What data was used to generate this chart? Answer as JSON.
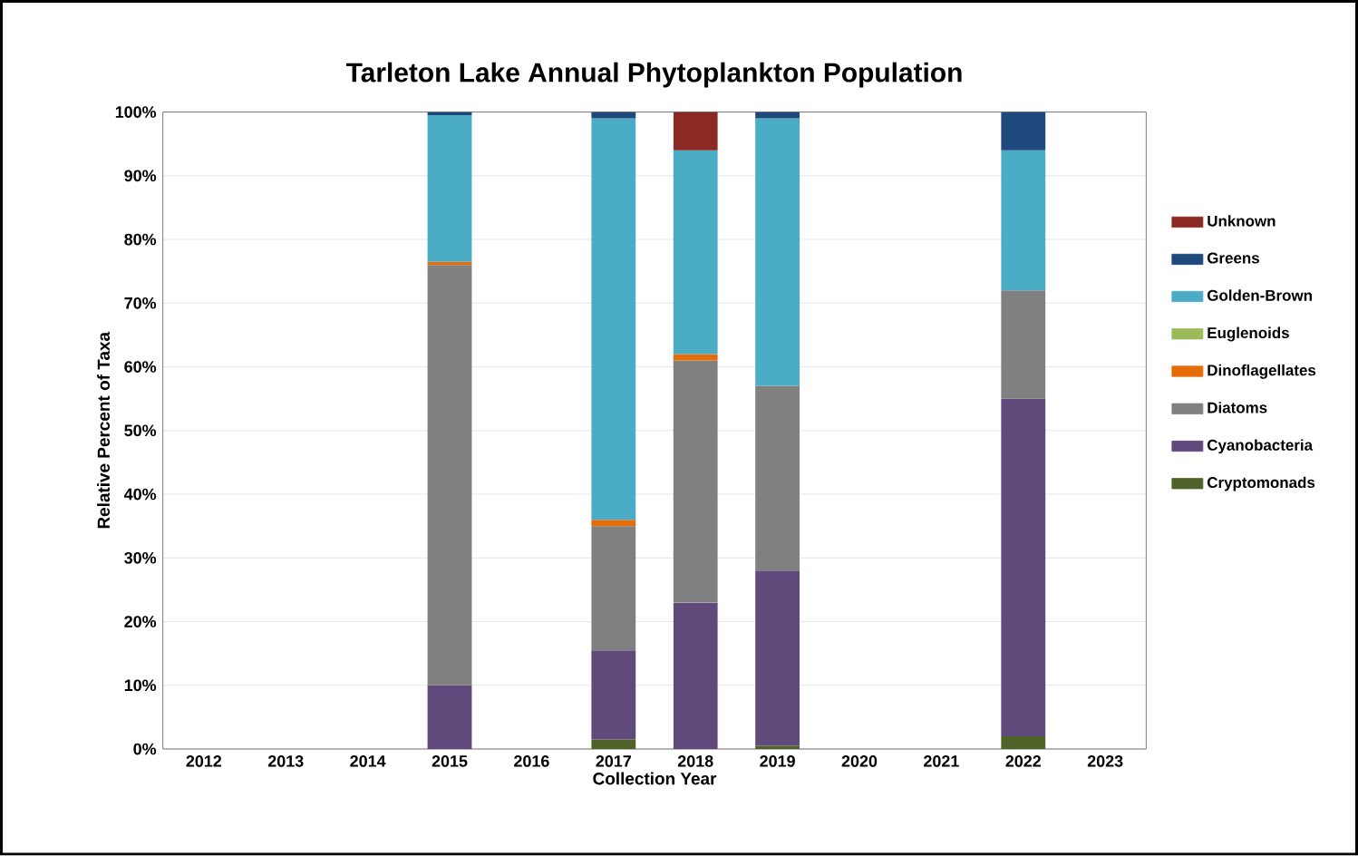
{
  "chart_data": {
    "type": "bar",
    "stacked": true,
    "title": "Tarleton Lake Annual Phytoplankton Population",
    "xlabel": "Collection Year",
    "ylabel": "Relative Percent of Taxa",
    "categories": [
      "2012",
      "2013",
      "2014",
      "2015",
      "2016",
      "2017",
      "2018",
      "2019",
      "2020",
      "2021",
      "2022",
      "2023"
    ],
    "series": [
      {
        "name": "Cryptomonads",
        "color": "#4f6228",
        "values": [
          null,
          null,
          null,
          0,
          null,
          1.5,
          0,
          0.5,
          null,
          null,
          2,
          null
        ]
      },
      {
        "name": "Cyanobacteria",
        "color": "#604a7b",
        "values": [
          null,
          null,
          null,
          10,
          null,
          14,
          23,
          27.5,
          null,
          null,
          53,
          null
        ]
      },
      {
        "name": "Diatoms",
        "color": "#808080",
        "values": [
          null,
          null,
          null,
          66,
          null,
          19.5,
          38,
          29,
          null,
          null,
          17,
          null
        ]
      },
      {
        "name": "Dinoflagellates",
        "color": "#e46c0a",
        "values": [
          null,
          null,
          null,
          0.5,
          null,
          1,
          1,
          0,
          null,
          null,
          0,
          null
        ]
      },
      {
        "name": "Euglenoids",
        "color": "#9bbb59",
        "values": [
          null,
          null,
          null,
          0,
          null,
          0,
          0,
          0,
          null,
          null,
          0,
          null
        ]
      },
      {
        "name": "Golden-Brown",
        "color": "#4bacc6",
        "values": [
          null,
          null,
          null,
          23,
          null,
          63,
          32,
          42,
          null,
          null,
          22,
          null
        ]
      },
      {
        "name": "Greens",
        "color": "#1f497d",
        "values": [
          null,
          null,
          null,
          0.5,
          null,
          1,
          0,
          1,
          null,
          null,
          6,
          null
        ]
      },
      {
        "name": "Unknown",
        "color": "#8b2a22",
        "values": [
          null,
          null,
          null,
          0,
          null,
          0,
          6,
          0,
          null,
          null,
          0,
          null
        ]
      }
    ],
    "ylim": [
      0,
      100
    ],
    "yticks": [
      {
        "value": 0,
        "label": "0%"
      },
      {
        "value": 10,
        "label": "10%"
      },
      {
        "value": 20,
        "label": "20%"
      },
      {
        "value": 30,
        "label": "30%"
      },
      {
        "value": 40,
        "label": "40%"
      },
      {
        "value": 50,
        "label": "50%"
      },
      {
        "value": 60,
        "label": "60%"
      },
      {
        "value": 70,
        "label": "70%"
      },
      {
        "value": 80,
        "label": "80%"
      },
      {
        "value": 90,
        "label": "90%"
      },
      {
        "value": 100,
        "label": "100%"
      }
    ],
    "grid": "y",
    "legend": "right"
  }
}
